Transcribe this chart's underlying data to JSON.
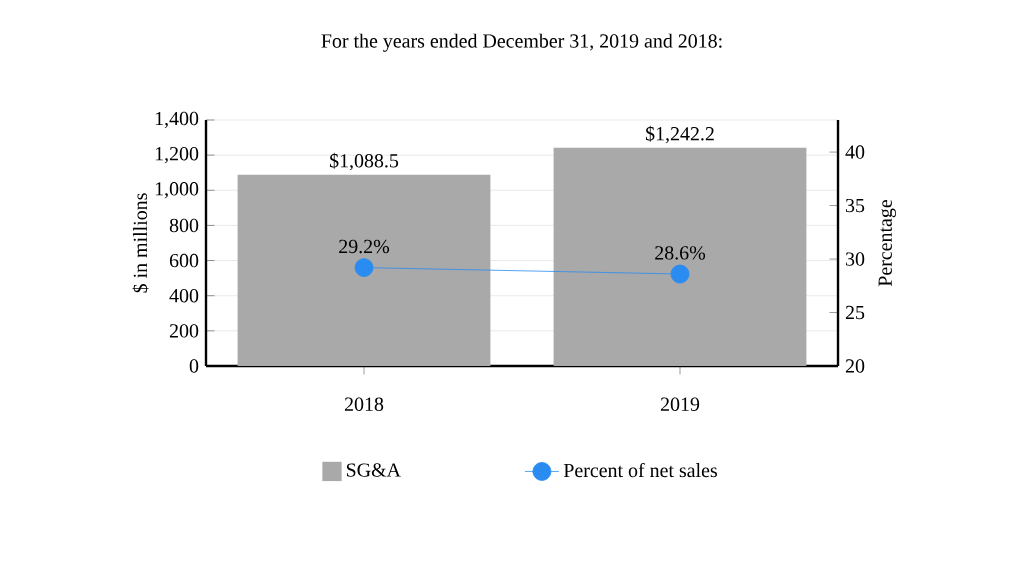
{
  "chart_data": {
    "type": "bar",
    "title": "For the years ended December 31, 2019 and 2018:",
    "categories": [
      "2018",
      "2019"
    ],
    "ylabel": "$ in millions",
    "y2label": "Percentage",
    "ylim": [
      0,
      1400
    ],
    "yticks": [
      0,
      200,
      400,
      600,
      800,
      {
        "value": 1000,
        "label": "1,000"
      },
      {
        "value": 1200,
        "label": "1,200"
      },
      {
        "value": 1400,
        "label": "1,400"
      }
    ],
    "y2lim": [
      20,
      43
    ],
    "y2ticks": [
      20,
      25,
      30,
      35,
      40
    ],
    "grid": "y",
    "legend": "bottom",
    "series": [
      {
        "name": "SG&A",
        "color": "#a9a9a9",
        "values": [
          1088.5,
          1242.2
        ],
        "value_labels": [
          "$1,088.5",
          "$1,242.2"
        ]
      },
      {
        "name": "Percent of net sales",
        "type": "line",
        "axis": "y2",
        "color": "#2a8cf0",
        "marker": "circle",
        "values": [
          29.2,
          28.6
        ],
        "value_labels": [
          "29.2%",
          "28.6%"
        ]
      }
    ]
  }
}
